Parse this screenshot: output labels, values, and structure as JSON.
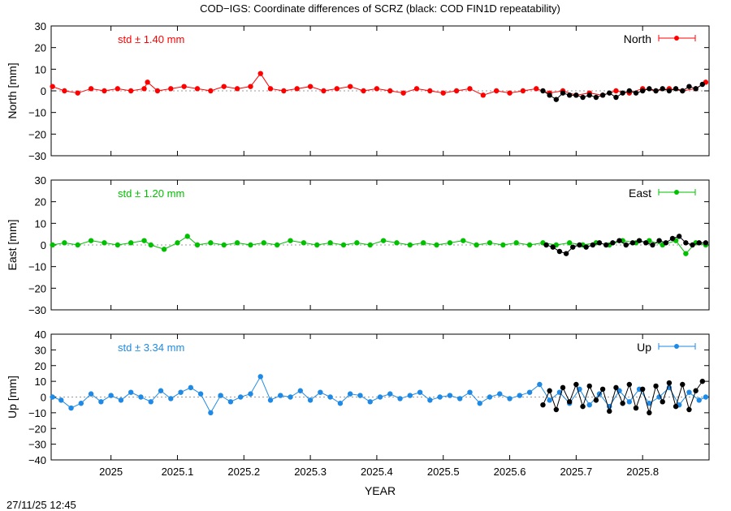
{
  "figure": {
    "title": "COD−IGS: Coordinate differences of SCRZ (black: COD FIN1D repeatability)",
    "timestamp": "27/11/25 12:45",
    "xlabel": "YEAR"
  },
  "colors": {
    "north": "#ff0000",
    "east": "#00c000",
    "up": "#1e8ae6",
    "repeatability": "#000000",
    "axis": "#000000",
    "grid_zero": "#999999"
  },
  "chart_data": [
    {
      "type": "line",
      "panel": "north",
      "ylabel": "North [mm]",
      "legend": "North",
      "std_label": "std ± 1.40 mm",
      "xlim": [
        2024.91,
        2025.9
      ],
      "ylim": [
        -30,
        30
      ],
      "yticks": [
        -30,
        -20,
        -10,
        0,
        10,
        20,
        30
      ],
      "grid": false,
      "legend_position": "top-right",
      "series": [
        {
          "name": "North",
          "x": [
            2024.912,
            2024.93,
            2024.95,
            2024.97,
            2024.99,
            2025.01,
            2025.03,
            2025.05,
            2025.055,
            2025.07,
            2025.09,
            2025.11,
            2025.13,
            2025.15,
            2025.17,
            2025.19,
            2025.21,
            2025.225,
            2025.24,
            2025.26,
            2025.28,
            2025.3,
            2025.32,
            2025.34,
            2025.36,
            2025.38,
            2025.4,
            2025.42,
            2025.44,
            2025.46,
            2025.48,
            2025.5,
            2025.52,
            2025.54,
            2025.56,
            2025.58,
            2025.6,
            2025.62,
            2025.64,
            2025.66,
            2025.68,
            2025.7,
            2025.72,
            2025.74,
            2025.76,
            2025.78,
            2025.8,
            2025.82,
            2025.84,
            2025.86,
            2025.88,
            2025.895
          ],
          "values": [
            2,
            0,
            -1,
            1,
            0,
            1,
            0,
            1,
            4,
            0,
            1,
            2,
            1,
            0,
            2,
            1,
            2,
            8,
            1,
            0,
            1,
            2,
            0,
            1,
            2,
            0,
            1,
            0,
            -1,
            1,
            0,
            -1,
            0,
            1,
            -2,
            0,
            -1,
            0,
            1,
            -1,
            0,
            -2,
            -1,
            -2,
            0,
            -1,
            1,
            0,
            1,
            0,
            1,
            4
          ]
        },
        {
          "name": "",
          "x": [
            2025.65,
            2025.66,
            2025.67,
            2025.68,
            2025.69,
            2025.7,
            2025.71,
            2025.72,
            2025.73,
            2025.74,
            2025.75,
            2025.76,
            2025.77,
            2025.78,
            2025.79,
            2025.8,
            2025.81,
            2025.82,
            2025.83,
            2025.84,
            2025.85,
            2025.86,
            2025.87,
            2025.88,
            2025.89
          ],
          "values": [
            0,
            -2,
            -4,
            -1,
            -2,
            -2,
            -3,
            -2,
            -3,
            -2,
            -1,
            -3,
            -1,
            0,
            -1,
            0,
            1,
            0,
            1,
            0,
            1,
            0,
            2,
            1,
            3
          ]
        }
      ]
    },
    {
      "type": "line",
      "panel": "east",
      "ylabel": "East [mm]",
      "legend": "East",
      "std_label": "std ± 1.20 mm",
      "xlim": [
        2024.91,
        2025.9
      ],
      "ylim": [
        -30,
        30
      ],
      "yticks": [
        -30,
        -20,
        -10,
        0,
        10,
        20,
        30
      ],
      "grid": false,
      "legend_position": "top-right",
      "series": [
        {
          "name": "East",
          "x": [
            2024.912,
            2024.93,
            2024.95,
            2024.97,
            2024.99,
            2025.01,
            2025.03,
            2025.05,
            2025.06,
            2025.08,
            2025.1,
            2025.115,
            2025.13,
            2025.15,
            2025.17,
            2025.19,
            2025.21,
            2025.23,
            2025.25,
            2025.27,
            2025.29,
            2025.31,
            2025.33,
            2025.35,
            2025.37,
            2025.39,
            2025.41,
            2025.43,
            2025.45,
            2025.47,
            2025.49,
            2025.51,
            2025.53,
            2025.55,
            2025.57,
            2025.59,
            2025.61,
            2025.63,
            2025.65,
            2025.67,
            2025.69,
            2025.71,
            2025.73,
            2025.75,
            2025.77,
            2025.79,
            2025.81,
            2025.83,
            2025.85,
            2025.865,
            2025.88,
            2025.895
          ],
          "values": [
            0,
            1,
            0,
            2,
            1,
            0,
            1,
            2,
            0,
            -2,
            1,
            4,
            0,
            1,
            0,
            1,
            0,
            1,
            0,
            2,
            1,
            0,
            1,
            0,
            1,
            0,
            2,
            1,
            0,
            1,
            0,
            1,
            2,
            0,
            1,
            0,
            1,
            0,
            1,
            0,
            1,
            0,
            1,
            0,
            2,
            1,
            2,
            0,
            2,
            -4,
            1,
            0
          ]
        },
        {
          "name": "",
          "x": [
            2025.655,
            2025.665,
            2025.675,
            2025.685,
            2025.695,
            2025.705,
            2025.715,
            2025.725,
            2025.735,
            2025.745,
            2025.755,
            2025.765,
            2025.775,
            2025.785,
            2025.795,
            2025.805,
            2025.815,
            2025.825,
            2025.835,
            2025.845,
            2025.855,
            2025.865,
            2025.875,
            2025.885,
            2025.895
          ],
          "values": [
            0,
            -1,
            -3,
            -4,
            -1,
            0,
            -1,
            0,
            1,
            0,
            1,
            2,
            0,
            1,
            2,
            1,
            0,
            2,
            1,
            3,
            4,
            1,
            0,
            1,
            1
          ]
        }
      ]
    },
    {
      "type": "line",
      "panel": "up",
      "ylabel": "Up [mm]",
      "legend": "Up",
      "std_label": "std ± 3.34 mm",
      "xlim": [
        2024.91,
        2025.9
      ],
      "ylim": [
        -40,
        40
      ],
      "yticks": [
        -40,
        -30,
        -20,
        -10,
        0,
        10,
        20,
        30,
        40
      ],
      "grid": false,
      "legend_position": "top-right",
      "series": [
        {
          "name": "Up",
          "x": [
            2024.912,
            2024.925,
            2024.94,
            2024.955,
            2024.97,
            2024.985,
            2025.0,
            2025.015,
            2025.03,
            2025.045,
            2025.06,
            2025.075,
            2025.09,
            2025.105,
            2025.12,
            2025.135,
            2025.15,
            2025.165,
            2025.18,
            2025.195,
            2025.21,
            2025.225,
            2025.24,
            2025.255,
            2025.27,
            2025.285,
            2025.3,
            2025.315,
            2025.33,
            2025.345,
            2025.36,
            2025.375,
            2025.39,
            2025.405,
            2025.42,
            2025.435,
            2025.45,
            2025.465,
            2025.48,
            2025.495,
            2025.51,
            2025.525,
            2025.54,
            2025.555,
            2025.57,
            2025.585,
            2025.6,
            2025.615,
            2025.63,
            2025.645,
            2025.66,
            2025.675,
            2025.69,
            2025.705,
            2025.72,
            2025.735,
            2025.75,
            2025.765,
            2025.78,
            2025.795,
            2025.81,
            2025.825,
            2025.84,
            2025.855,
            2025.87,
            2025.885,
            2025.895
          ],
          "values": [
            0,
            -2,
            -7,
            -4,
            2,
            -3,
            1,
            -2,
            3,
            0,
            -3,
            4,
            -1,
            3,
            6,
            2,
            -10,
            1,
            -3,
            0,
            2,
            13,
            -2,
            1,
            0,
            4,
            -2,
            3,
            0,
            -4,
            2,
            1,
            -3,
            0,
            2,
            -1,
            1,
            3,
            -2,
            0,
            1,
            -1,
            3,
            -4,
            0,
            2,
            -1,
            1,
            3,
            8,
            -2,
            3,
            -4,
            5,
            -5,
            2,
            -6,
            4,
            -3,
            5,
            -4,
            0,
            6,
            -5,
            3,
            -2,
            0
          ]
        },
        {
          "name": "",
          "x": [
            2025.65,
            2025.66,
            2025.67,
            2025.68,
            2025.69,
            2025.7,
            2025.71,
            2025.72,
            2025.73,
            2025.74,
            2025.75,
            2025.76,
            2025.77,
            2025.78,
            2025.79,
            2025.8,
            2025.81,
            2025.82,
            2025.83,
            2025.84,
            2025.85,
            2025.86,
            2025.87,
            2025.88,
            2025.89
          ],
          "values": [
            -5,
            4,
            -8,
            6,
            -3,
            8,
            -6,
            7,
            -2,
            5,
            -9,
            6,
            -4,
            8,
            -7,
            5,
            -10,
            7,
            -3,
            9,
            -6,
            8,
            -8,
            4,
            10
          ]
        }
      ]
    }
  ]
}
